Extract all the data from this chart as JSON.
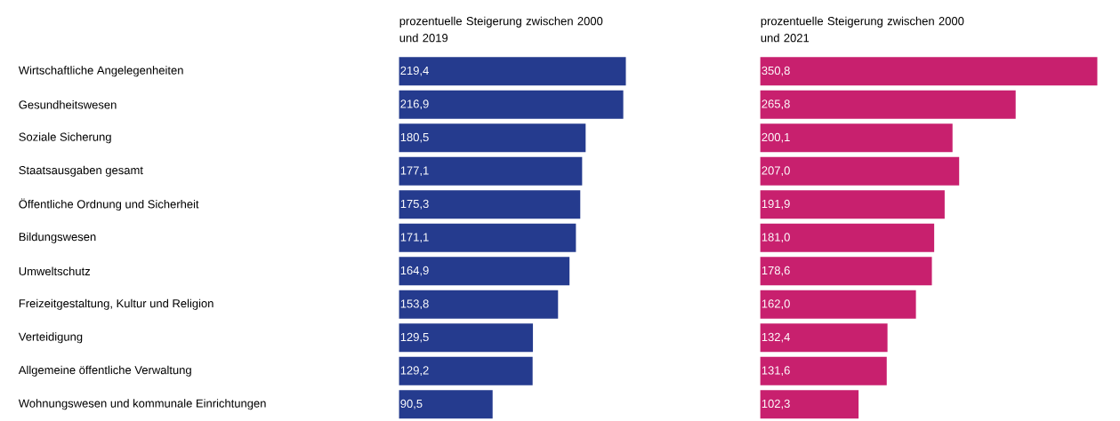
{
  "chart_data": [
    {
      "type": "bar",
      "orientation": "horizontal",
      "title": "prozentuelle Steigerung zwischen 2000 und 2019",
      "categories": [
        "Wirtschaftliche Angelegenheiten",
        "Gesundheitswesen",
        "Soziale Sicherung",
        "Staatsausgaben gesamt",
        "Öffentliche Ordnung und Sicherheit",
        "Bildungswesen",
        "Umweltschutz",
        "Freizeitgestaltung, Kultur und Religion",
        "Verteidigung",
        "Allgemeine öffentliche Verwaltung",
        "Wohnungswesen und kommunale Einrichtungen"
      ],
      "values": [
        219.4,
        216.9,
        180.5,
        177.1,
        175.3,
        171.1,
        164.9,
        153.8,
        129.5,
        129.2,
        90.5
      ],
      "value_labels": [
        "219,4",
        "216,9",
        "180,5",
        "177,1",
        "175,3",
        "171,1",
        "164,9",
        "153,8",
        "129,5",
        "129,2",
        "90,5"
      ],
      "color": "#253b8e"
    },
    {
      "type": "bar",
      "orientation": "horizontal",
      "title": "prozentuelle Steigerung zwischen 2000 und 2021",
      "categories": [
        null,
        null,
        null,
        null,
        null,
        null,
        null,
        null,
        null,
        null,
        null
      ],
      "values": [
        350.8,
        265.8,
        200.1,
        207.0,
        191.9,
        181.0,
        178.6,
        162.0,
        132.4,
        131.6,
        102.3
      ],
      "value_labels": [
        "350,8",
        "265,8",
        "200,1",
        "207,0",
        "191,9",
        "181,0",
        "178,6",
        "162,0",
        "132,4",
        "131,6",
        "102,3"
      ],
      "color": "#c8206e"
    }
  ]
}
